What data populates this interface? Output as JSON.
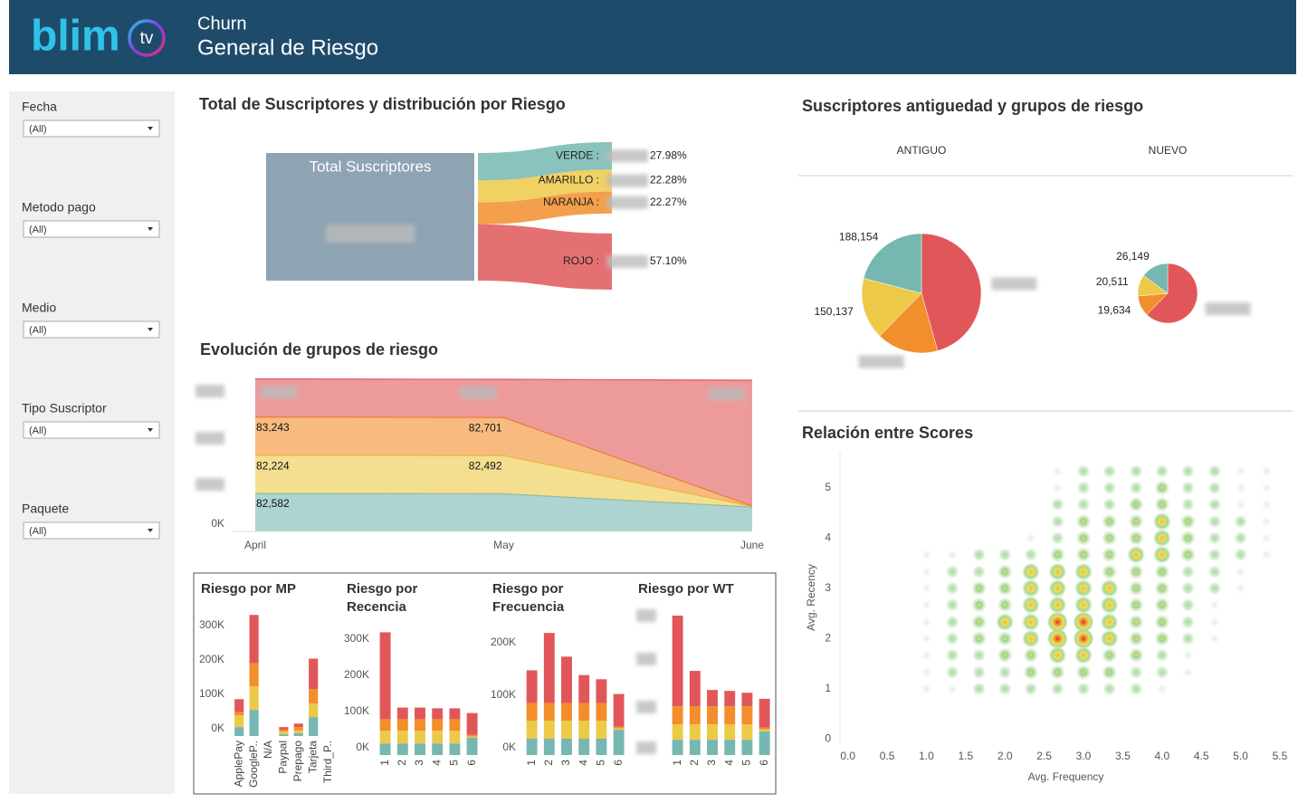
{
  "header": {
    "logo": "blim",
    "logo_badge": "tv",
    "title": "Churn",
    "subtitle": "General de Riesgo"
  },
  "filters": [
    {
      "label": "Fecha",
      "value": "(All)"
    },
    {
      "label": "Metodo pago",
      "value": "(All)"
    },
    {
      "label": "Medio",
      "value": "(All)"
    },
    {
      "label": "Tipo Suscriptor",
      "value": "(All)"
    },
    {
      "label": "Paquete",
      "value": "(All)"
    }
  ],
  "chart_data": [
    {
      "type": "sankey",
      "title": "Total de Suscriptores y distribución por Riesgo",
      "source_label": "Total Suscriptores",
      "categories": [
        "VERDE :",
        "AMARILLO :",
        "NARANJA :",
        "ROJO :"
      ],
      "values": [
        27.98,
        22.28,
        22.27,
        57.1
      ],
      "value_labels": [
        "27.98%",
        "22.28%",
        "22.27%",
        "57.10%"
      ],
      "colors": [
        "#76b7b2",
        "#edc948",
        "#f28e2b",
        "#e15759"
      ],
      "source_color": "#8fa4b3"
    },
    {
      "type": "area",
      "title": "Evolución de grupos de riesgo",
      "stacked": true,
      "categories": [
        "April",
        "May",
        "June"
      ],
      "ylim": [
        0,
        332000
      ],
      "yticks": [
        {
          "value": 0,
          "label": "0K"
        }
      ],
      "series": [
        {
          "color": "#76b7b2",
          "values": [
            82582,
            81800,
            53000
          ],
          "value_labels": [
            "82,582",
            null,
            null
          ]
        },
        {
          "color": "#edc948",
          "values": [
            82224,
            82492,
            1000
          ],
          "value_labels": [
            "82,224",
            "82,492",
            null
          ]
        },
        {
          "color": "#f28e2b",
          "values": [
            83243,
            82701,
            1000
          ],
          "value_labels": [
            "83,243",
            "82,701",
            null
          ]
        },
        {
          "color": "#e15759",
          "values": [
            83000,
            83000,
            273000
          ],
          "value_labels": [
            null,
            null,
            null
          ]
        }
      ]
    },
    {
      "type": "pie",
      "title": "Suscriptores antiguedad y grupos de riesgo",
      "colors": [
        "#76b7b2",
        "#edc948",
        "#f28e2b",
        "#e15759"
      ],
      "pies": [
        {
          "name": "ANTIGUO",
          "values": [
            188154,
            150137,
            150000,
            410000
          ],
          "value_labels": [
            "188,154",
            "150,137",
            null,
            null
          ]
        },
        {
          "name": "NUEVO",
          "values": [
            26149,
            20511,
            19634,
            110000
          ],
          "value_labels": [
            "26,149",
            "20,511",
            "19,634",
            null
          ]
        }
      ]
    },
    {
      "type": "heatmap",
      "title": "Relación entre Scores",
      "xlabel": "Avg. Frequency",
      "ylabel": "Avg. Recency",
      "xlim": [
        -0.1,
        5.65
      ],
      "ylim": [
        -0.1,
        5.7
      ],
      "xticks": [
        {
          "value": 0,
          "label": "0.0"
        },
        0.5,
        {
          "value": 1,
          "label": "1.0"
        },
        1.5,
        {
          "value": 2,
          "label": "2.0"
        },
        2.5,
        {
          "value": 3,
          "label": "3.0"
        },
        3.5,
        {
          "value": 4,
          "label": "4.0"
        },
        4.5,
        {
          "value": 5,
          "label": "5.0"
        },
        5.5
      ],
      "yticks": [
        0,
        1,
        2,
        3,
        4,
        5
      ],
      "x": [
        1.0,
        1.33,
        1.67,
        2.0,
        2.33,
        2.67,
        3.0,
        3.33,
        3.67,
        4.0,
        4.33,
        4.67,
        5.0,
        5.33
      ],
      "y": [
        5.33,
        5.0,
        4.67,
        4.33,
        4.0,
        3.67,
        3.33,
        3.0,
        2.67,
        2.33,
        2.0,
        1.67,
        1.33,
        1.0
      ],
      "values": [
        [
          0,
          0,
          0,
          0,
          0,
          1,
          2,
          2,
          2,
          2,
          2,
          2,
          1,
          1
        ],
        [
          0,
          0,
          0,
          0,
          0,
          1,
          2,
          2,
          2,
          3,
          2,
          2,
          1,
          1
        ],
        [
          0,
          0,
          0,
          0,
          0,
          2,
          2,
          2,
          3,
          3,
          2,
          2,
          1,
          1
        ],
        [
          0,
          0,
          0,
          0,
          0,
          2,
          3,
          3,
          3,
          4,
          3,
          2,
          2,
          1
        ],
        [
          0,
          0,
          0,
          0,
          1,
          2,
          3,
          3,
          3,
          4,
          3,
          2,
          2,
          1
        ],
        [
          1,
          1,
          2,
          2,
          2,
          3,
          3,
          3,
          4,
          4,
          3,
          2,
          2,
          1
        ],
        [
          1,
          2,
          2,
          3,
          4,
          4,
          4,
          3,
          3,
          3,
          2,
          2,
          1,
          0
        ],
        [
          1,
          2,
          3,
          3,
          4,
          4,
          4,
          4,
          3,
          3,
          2,
          2,
          1,
          0
        ],
        [
          1,
          2,
          3,
          3,
          4,
          4,
          4,
          4,
          3,
          3,
          2,
          1,
          0,
          0
        ],
        [
          1,
          2,
          3,
          4,
          4,
          5,
          5,
          4,
          3,
          3,
          2,
          1,
          0,
          0
        ],
        [
          1,
          2,
          3,
          3,
          4,
          5,
          5,
          4,
          3,
          3,
          2,
          1,
          0,
          0
        ],
        [
          1,
          2,
          2,
          3,
          3,
          4,
          4,
          3,
          3,
          2,
          1,
          0,
          0,
          0
        ],
        [
          1,
          2,
          2,
          2,
          3,
          3,
          3,
          3,
          2,
          2,
          1,
          0,
          0,
          0
        ],
        [
          1,
          1,
          2,
          2,
          2,
          2,
          2,
          2,
          2,
          1,
          0,
          0,
          0,
          0
        ]
      ]
    },
    {
      "type": "bar",
      "title": "Riesgo por MP",
      "stacked": true,
      "categories": [
        "ApplePay",
        "GoogleP..",
        "N/A",
        "Paypal",
        "Prepago",
        "Tarjeta",
        "Third_P.."
      ],
      "ylim": [
        0,
        350000
      ],
      "yticks": [
        {
          "value": 0,
          "label": "0K"
        },
        {
          "value": 100000,
          "label": "100K"
        },
        {
          "value": 200000,
          "label": "200K"
        },
        {
          "value": 300000,
          "label": "300K"
        }
      ],
      "series": [
        {
          "color": "#76b7b2",
          "values": [
            26000,
            76000,
            0,
            5000,
            8000,
            55000,
            0
          ]
        },
        {
          "color": "#edc948",
          "values": [
            34000,
            68000,
            0,
            8000,
            8000,
            39000,
            0
          ]
        },
        {
          "color": "#f28e2b",
          "values": [
            10000,
            68000,
            0,
            5000,
            10000,
            42000,
            0
          ]
        },
        {
          "color": "#e15759",
          "values": [
            37000,
            140000,
            0,
            8000,
            10000,
            89000,
            0
          ]
        }
      ]
    },
    {
      "type": "bar",
      "title": "Riesgo por Recencia",
      "stacked": true,
      "categories": [
        "1",
        "2",
        "3",
        "4",
        "5",
        "6"
      ],
      "ylim": [
        0,
        385000
      ],
      "yticks": [
        {
          "value": 0,
          "label": "0K"
        },
        {
          "value": 100000,
          "label": "100K"
        },
        {
          "value": 200000,
          "label": "200K"
        },
        {
          "value": 300000,
          "label": "300K"
        }
      ],
      "series": [
        {
          "color": "#76b7b2",
          "values": [
            32000,
            32000,
            32000,
            32000,
            32000,
            48000
          ]
        },
        {
          "color": "#edc948",
          "values": [
            35000,
            35000,
            35000,
            35000,
            35000,
            3000
          ]
        },
        {
          "color": "#f28e2b",
          "values": [
            32000,
            32000,
            32000,
            32000,
            32000,
            5000
          ]
        },
        {
          "color": "#e15759",
          "values": [
            240000,
            32000,
            32000,
            30000,
            30000,
            60000
          ]
        }
      ]
    },
    {
      "type": "bar",
      "title": "Riesgo por Frecuencia",
      "stacked": true,
      "categories": [
        "1",
        "2",
        "3",
        "4",
        "5",
        "6"
      ],
      "ylim": [
        0,
        265000
      ],
      "yticks": [
        {
          "value": 0,
          "label": "0K"
        },
        {
          "value": 100000,
          "label": "100K"
        },
        {
          "value": 200000,
          "label": "200K"
        }
      ],
      "series": [
        {
          "color": "#76b7b2",
          "values": [
            31000,
            31000,
            31000,
            31000,
            31000,
            48000
          ]
        },
        {
          "color": "#edc948",
          "values": [
            34000,
            34000,
            34000,
            34000,
            34000,
            3000
          ]
        },
        {
          "color": "#f28e2b",
          "values": [
            34000,
            34000,
            34000,
            34000,
            34000,
            3000
          ]
        },
        {
          "color": "#e15759",
          "values": [
            62000,
            133000,
            88000,
            53000,
            45000,
            62000
          ]
        }
      ]
    },
    {
      "type": "bar",
      "title": "Riesgo por WT",
      "stacked": true,
      "categories": [
        "1",
        "2",
        "3",
        "4",
        "5",
        "6"
      ],
      "ylim": [
        0,
        300000
      ],
      "series": [
        {
          "color": "#76b7b2",
          "values": [
            33000,
            33000,
            33000,
            33000,
            33000,
            51000
          ]
        },
        {
          "color": "#edc948",
          "values": [
            33000,
            33000,
            33000,
            33000,
            33000,
            4000
          ]
        },
        {
          "color": "#f28e2b",
          "values": [
            39000,
            39000,
            39000,
            39000,
            39000,
            4000
          ]
        },
        {
          "color": "#e15759",
          "values": [
            195000,
            76000,
            35000,
            33000,
            29000,
            62000
          ]
        }
      ]
    }
  ]
}
